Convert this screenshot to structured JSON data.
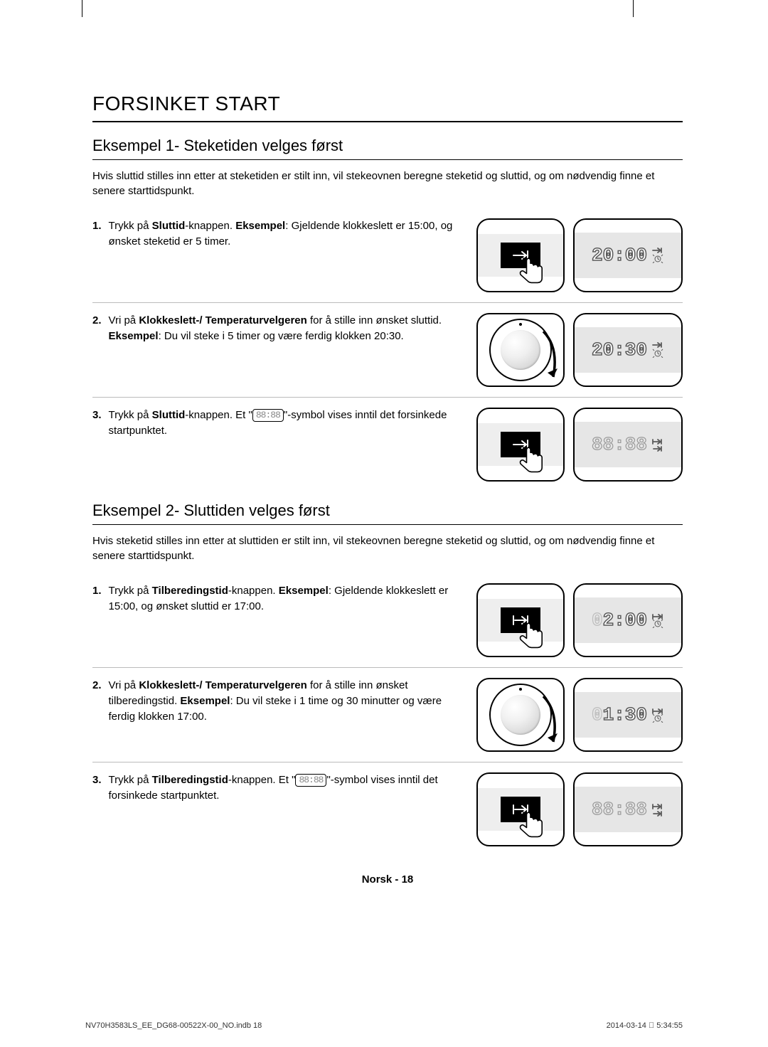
{
  "page": {
    "sectionTitle": "FORSINKET START",
    "footerLabel": "Norsk - 18",
    "printFile": "NV70H3583LS_EE_DG68-00522X-00_NO.indb   18",
    "printDate": "2014-03-14   󰀀 5:34:55"
  },
  "example1": {
    "title": "Eksempel 1- Steketiden velges først",
    "intro": "Hvis sluttid stilles inn etter at steketiden er stilt inn, vil stekeovnen beregne steketid og sluttid, og om nødvendig finne et senere starttidspunkt.",
    "steps": [
      {
        "num": "1.",
        "html": "Trykk på <b>Sluttid</b>-knappen. <b>Eksempel</b>: Gjeldende klokkeslett er 15:00, og ønsket steketid er 5 timer.",
        "leftFig": "press-arrow",
        "rightDisplay": "20:00",
        "rightIcon": "end"
      },
      {
        "num": "2.",
        "html": "Vri på <b>Klokkeslett-/ Temperaturvelgeren</b> for å stille inn ønsket sluttid. <b>Eksempel</b>: Du vil steke i 5 timer og være ferdig klokken 20:30.",
        "leftFig": "dial",
        "rightDisplay": "20:30",
        "rightIcon": "end"
      },
      {
        "num": "3.",
        "html": "Trykk på <b>Sluttid</b>-knappen. Et \"<span class='inline-sym'>88:88</span>\"-symbol vises inntil det forsinkede startpunktet.",
        "leftFig": "press-arrow",
        "rightDisplay": "88:88",
        "rightIcon": "both",
        "dashed": true
      }
    ]
  },
  "example2": {
    "title": "Eksempel 2- Sluttiden velges først",
    "intro": "Hvis steketid stilles inn etter at sluttiden er stilt inn, vil stekeovnen beregne steketid og sluttid, og om nødvendig finne et senere starttidspunkt.",
    "steps": [
      {
        "num": "1.",
        "html": "Trykk på <b>Tilberedingstid</b>-knappen. <b>Eksempel</b>: Gjeldende klokkeslett er 15:00, og ønsket sluttid er 17:00.",
        "leftFig": "press-duration",
        "rightDisplay": "02:00",
        "rightIcon": "duration",
        "leadingDim": true
      },
      {
        "num": "2.",
        "html": "Vri på <b>Klokkeslett-/ Temperaturvelgeren</b> for å stille inn ønsket tilberedingstid. <b>Eksempel</b>: Du vil steke i 1 time og 30 minutter og være ferdig klokken 17:00.",
        "leftFig": "dial",
        "rightDisplay": "01:30",
        "rightIcon": "duration",
        "leadingDim": true
      },
      {
        "num": "3.",
        "html": "Trykk på <b>Tilberedingstid</b>-knappen. Et \"<span class='inline-sym'>88:88</span>\"-symbol vises inntil det forsinkede startpunktet.",
        "leftFig": "press-duration",
        "rightDisplay": "88:88",
        "rightIcon": "both",
        "dashed": true
      }
    ]
  },
  "colors": {
    "segStroke": "#5a5a5a",
    "segFill": "#ffffff",
    "border": "#000000",
    "divider": "#bbbbbb",
    "displayBand": "#e6e6e6"
  }
}
